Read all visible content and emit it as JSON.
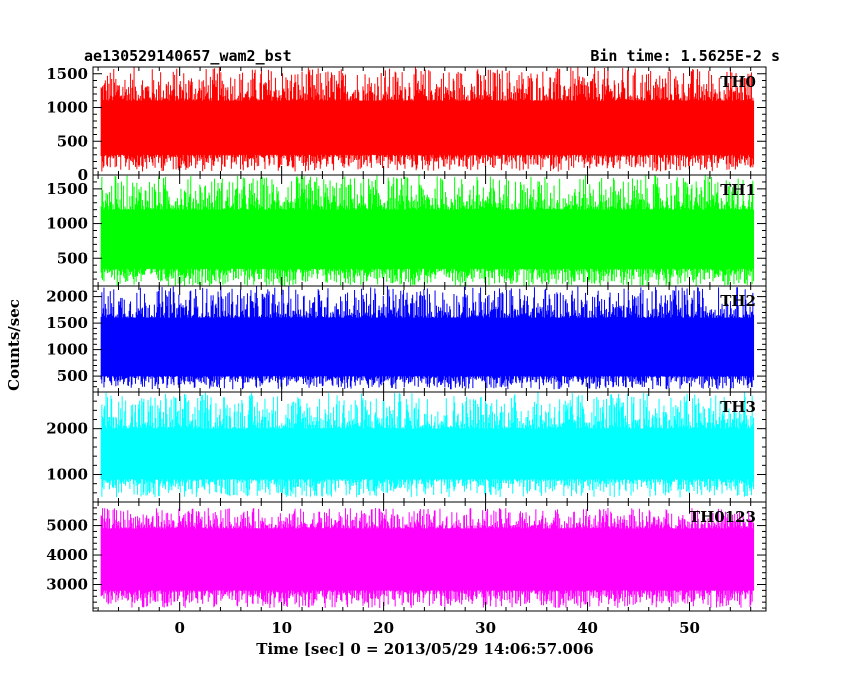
{
  "header": {
    "title": "ae130529140657_wam2_bst",
    "bin_time": "Bin time: 1.5625E-2 s"
  },
  "chart_data": {
    "type": "line",
    "ylabel": "Counts/sec",
    "xlabel": "Time [sec] 0 = 2013/05/29 14:06:57.006",
    "xlim": [
      -8.5,
      57.5
    ],
    "x_ticks": [
      0,
      10,
      20,
      30,
      40,
      50
    ],
    "x_minor_step": 2,
    "x_range_data": [
      -7.7,
      56.3
    ],
    "panels": [
      {
        "name": "TH0",
        "color": "#ff0000",
        "ylim": [
          0,
          1600
        ],
        "y_ticks": [
          0,
          500,
          1000,
          1500
        ],
        "y_minor_step": 100,
        "band": {
          "low": 300,
          "high": 1100
        },
        "range": {
          "min": 50,
          "max": 1600
        }
      },
      {
        "name": "TH1",
        "color": "#00ff00",
        "ylim": [
          100,
          1700
        ],
        "y_ticks": [
          500,
          1000,
          1500
        ],
        "y_minor_step": 100,
        "band": {
          "low": 350,
          "high": 1200
        },
        "range": {
          "min": 100,
          "max": 1700
        }
      },
      {
        "name": "TH2",
        "color": "#0000ff",
        "ylim": [
          200,
          2200
        ],
        "y_ticks": [
          500,
          1000,
          1500,
          2000
        ],
        "y_minor_step": 100,
        "band": {
          "low": 500,
          "high": 1600
        },
        "range": {
          "min": 250,
          "max": 2200
        }
      },
      {
        "name": "TH3",
        "color": "#00ffff",
        "ylim": [
          400,
          2800
        ],
        "y_ticks": [
          1000,
          2000
        ],
        "y_minor_step": 200,
        "band": {
          "low": 900,
          "high": 2000
        },
        "range": {
          "min": 500,
          "max": 2800
        }
      },
      {
        "name": "TH0123",
        "color": "#ff00ff",
        "ylim": [
          2100,
          5800
        ],
        "y_ticks": [
          3000,
          4000,
          5000
        ],
        "y_minor_step": 200,
        "band": {
          "low": 2800,
          "high": 4900
        },
        "range": {
          "min": 2200,
          "max": 5600
        }
      }
    ]
  }
}
